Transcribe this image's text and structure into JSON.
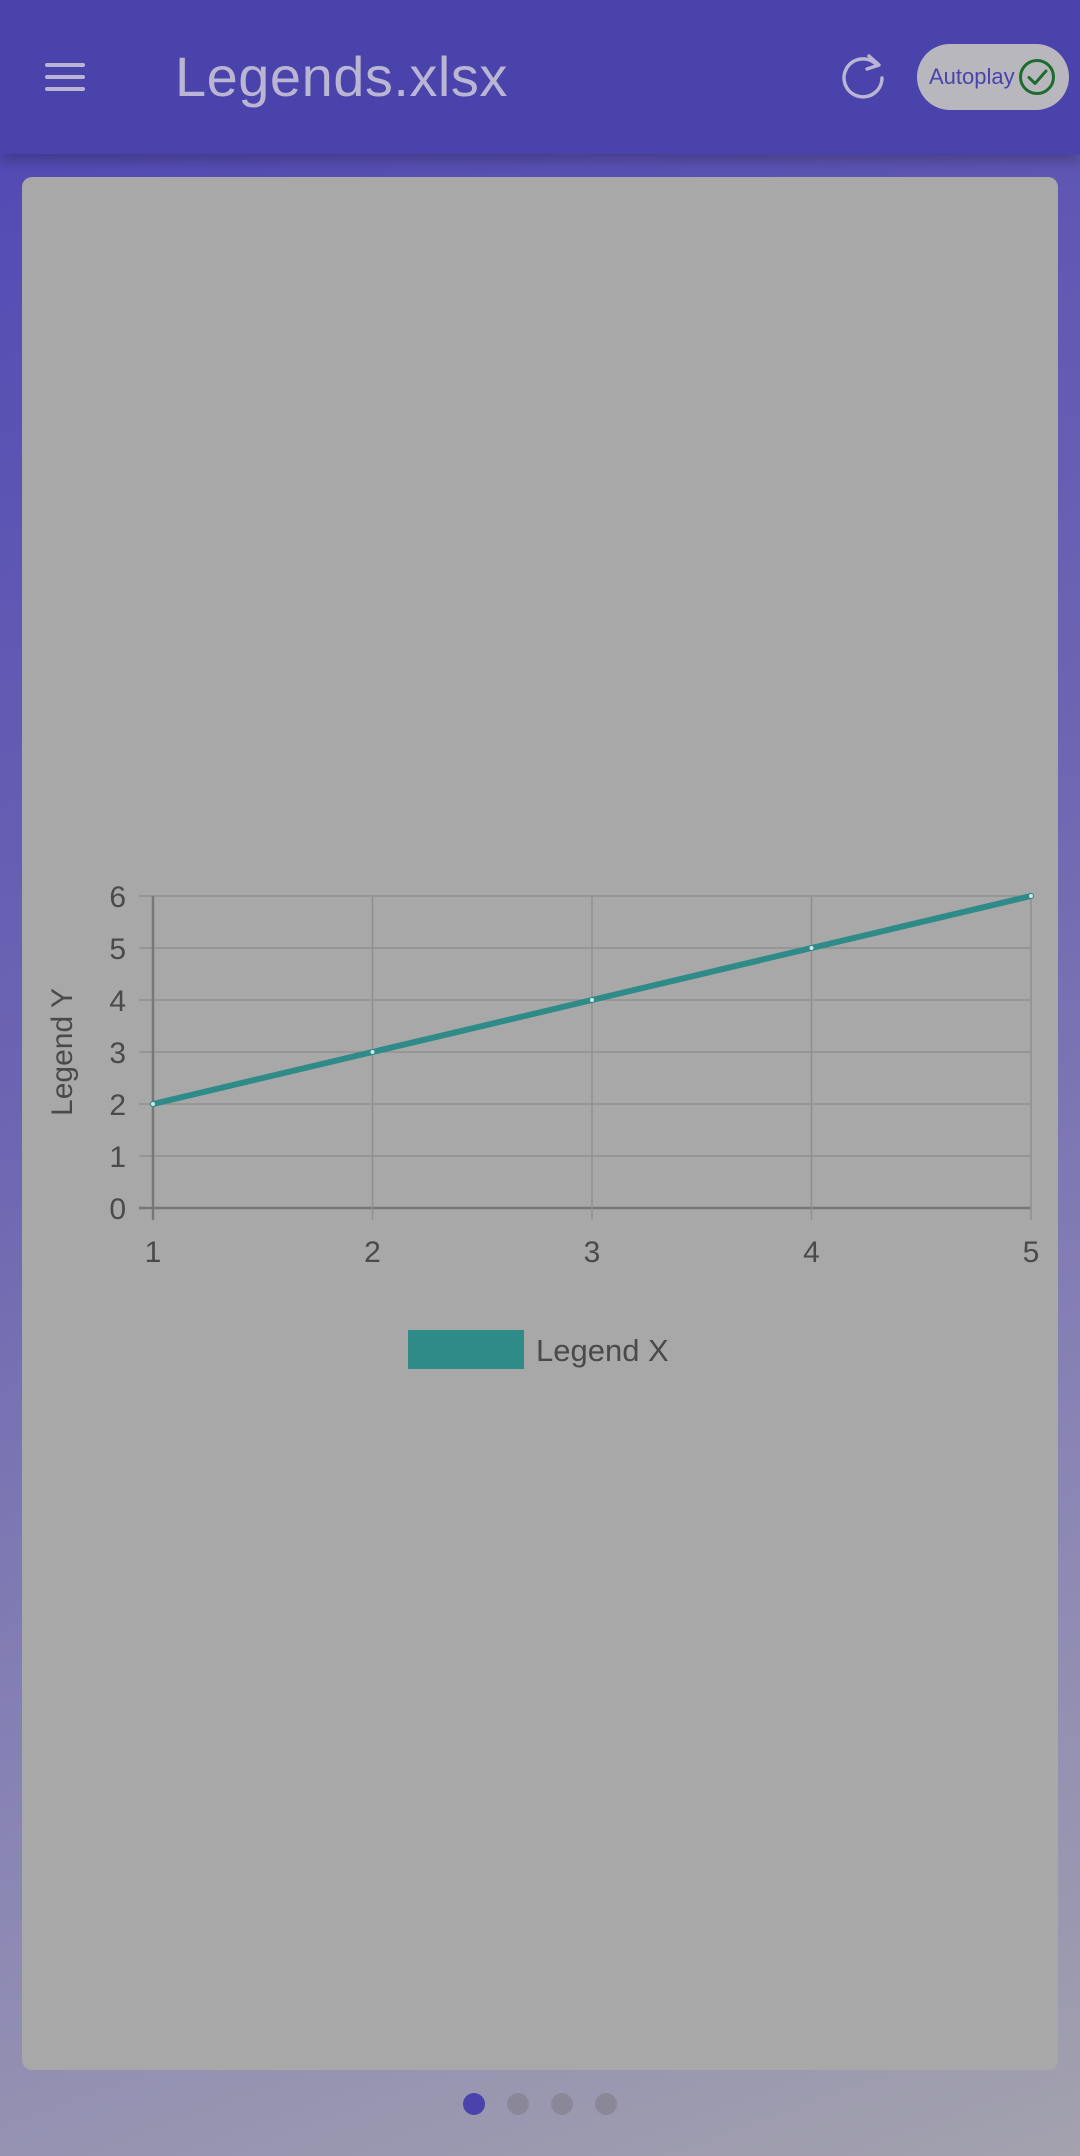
{
  "app_bar": {
    "title": "Legends.xlsx",
    "menu_icon": "hamburger-menu-icon",
    "refresh_icon": "refresh-icon",
    "autoplay_label": "Autoplay",
    "autoplay_icon": "check-circle-icon",
    "colors": {
      "bar": "#4943ab",
      "title": "#b9b5d3",
      "autoplay_check": "#1e6b2e"
    }
  },
  "chart_data": {
    "type": "line",
    "x": [
      1,
      2,
      3,
      4,
      5
    ],
    "series": [
      {
        "name": "Legend X",
        "values": [
          2,
          3,
          4,
          5,
          6
        ],
        "color": "#2e8b87"
      }
    ],
    "xlabel": "",
    "ylabel": "Legend Y",
    "xlim": [
      1,
      5
    ],
    "ylim": [
      0,
      6
    ],
    "x_ticks": [
      1,
      2,
      3,
      4,
      5
    ],
    "y_ticks": [
      0,
      1,
      2,
      3,
      4,
      5,
      6
    ],
    "grid": true,
    "legend_position": "bottom"
  },
  "pagination": {
    "pages": 4,
    "current": 1
  }
}
